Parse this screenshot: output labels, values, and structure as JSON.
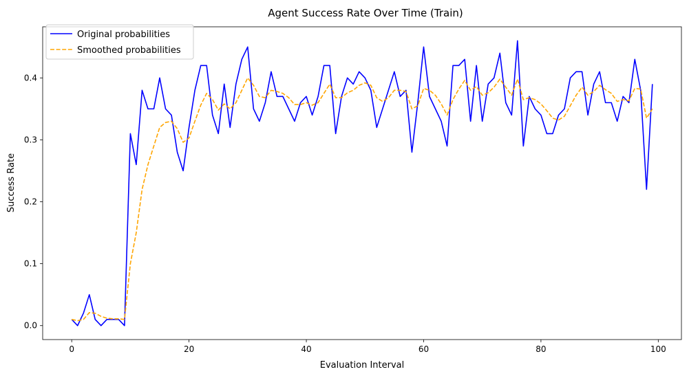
{
  "chart_data": {
    "type": "line",
    "title": "Agent Success Rate Over Time (Train)",
    "xlabel": "Evaluation Interval",
    "ylabel": "Success Rate",
    "xlim": [
      -4.95,
      103.95
    ],
    "ylim": [
      -0.0225,
      0.4825
    ],
    "xticks": [
      0,
      20,
      40,
      60,
      80,
      100
    ],
    "xtick_labels": [
      "0",
      "20",
      "40",
      "60",
      "80",
      "100"
    ],
    "yticks": [
      0.0,
      0.1,
      0.2,
      0.3,
      0.4
    ],
    "ytick_labels": [
      "0.0",
      "0.1",
      "0.2",
      "0.3",
      "0.4"
    ],
    "grid": false,
    "legend_position": "top-left",
    "series": [
      {
        "name": "Original probabilities",
        "color": "#0000ff",
        "style": "solid",
        "x": [
          0,
          1,
          2,
          3,
          4,
          5,
          6,
          7,
          8,
          9,
          10,
          11,
          12,
          13,
          14,
          15,
          16,
          17,
          18,
          19,
          20,
          21,
          22,
          23,
          24,
          25,
          26,
          27,
          28,
          29,
          30,
          31,
          32,
          33,
          34,
          35,
          36,
          37,
          38,
          39,
          40,
          41,
          42,
          43,
          44,
          45,
          46,
          47,
          48,
          49,
          50,
          51,
          52,
          53,
          54,
          55,
          56,
          57,
          58,
          59,
          60,
          61,
          62,
          63,
          64,
          65,
          66,
          67,
          68,
          69,
          70,
          71,
          72,
          73,
          74,
          75,
          76,
          77,
          78,
          79,
          80,
          81,
          82,
          83,
          84,
          85,
          86,
          87,
          88,
          89,
          90,
          91,
          92,
          93,
          94,
          95,
          96,
          97,
          98,
          99
        ],
        "values": [
          0.01,
          0.0,
          0.02,
          0.05,
          0.01,
          0.0,
          0.01,
          0.01,
          0.01,
          0.0,
          0.31,
          0.26,
          0.38,
          0.35,
          0.35,
          0.4,
          0.35,
          0.34,
          0.28,
          0.25,
          0.32,
          0.38,
          0.42,
          0.42,
          0.34,
          0.31,
          0.39,
          0.32,
          0.39,
          0.43,
          0.45,
          0.35,
          0.33,
          0.36,
          0.41,
          0.37,
          0.37,
          0.35,
          0.33,
          0.36,
          0.37,
          0.34,
          0.37,
          0.42,
          0.42,
          0.31,
          0.37,
          0.4,
          0.39,
          0.41,
          0.4,
          0.38,
          0.32,
          0.35,
          0.38,
          0.41,
          0.37,
          0.38,
          0.28,
          0.36,
          0.45,
          0.37,
          0.35,
          0.33,
          0.29,
          0.42,
          0.42,
          0.43,
          0.33,
          0.42,
          0.33,
          0.39,
          0.4,
          0.44,
          0.36,
          0.34,
          0.46,
          0.29,
          0.37,
          0.35,
          0.34,
          0.31,
          0.31,
          0.34,
          0.35,
          0.4,
          0.41,
          0.41,
          0.34,
          0.39,
          0.41,
          0.36,
          0.36,
          0.33,
          0.37,
          0.36,
          0.43,
          0.38,
          0.22,
          0.39
        ]
      },
      {
        "name": "Smoothed probabilities",
        "color": "#ffa500",
        "style": "dashed",
        "x": [
          0,
          1,
          2,
          3,
          4,
          5,
          6,
          7,
          8,
          9,
          10,
          11,
          12,
          13,
          14,
          15,
          16,
          17,
          18,
          19,
          20,
          21,
          22,
          23,
          24,
          25,
          26,
          27,
          28,
          29,
          30,
          31,
          32,
          33,
          34,
          35,
          36,
          37,
          38,
          39,
          40,
          41,
          42,
          43,
          44,
          45,
          46,
          47,
          48,
          49,
          50,
          51,
          52,
          53,
          54,
          55,
          56,
          57,
          58,
          59,
          60,
          61,
          62,
          63,
          64,
          65,
          66,
          67,
          68,
          69,
          70,
          71,
          72,
          73,
          74,
          75,
          76,
          77,
          78,
          79,
          80,
          81,
          82,
          83,
          84,
          85,
          86,
          87,
          88,
          89,
          90,
          91,
          92,
          93,
          94,
          95,
          96,
          97,
          98,
          99
        ],
        "values": [
          0.01,
          0.008,
          0.01,
          0.021,
          0.02,
          0.015,
          0.012,
          0.011,
          0.011,
          0.01,
          0.1,
          0.15,
          0.22,
          0.26,
          0.29,
          0.32,
          0.328,
          0.33,
          0.318,
          0.296,
          0.303,
          0.33,
          0.356,
          0.375,
          0.365,
          0.348,
          0.358,
          0.35,
          0.36,
          0.38,
          0.4,
          0.388,
          0.37,
          0.368,
          0.38,
          0.378,
          0.375,
          0.368,
          0.357,
          0.357,
          0.36,
          0.356,
          0.36,
          0.375,
          0.39,
          0.368,
          0.368,
          0.376,
          0.38,
          0.388,
          0.392,
          0.388,
          0.368,
          0.362,
          0.368,
          0.38,
          0.38,
          0.378,
          0.35,
          0.355,
          0.383,
          0.38,
          0.372,
          0.358,
          0.34,
          0.365,
          0.382,
          0.396,
          0.38,
          0.386,
          0.372,
          0.376,
          0.385,
          0.398,
          0.385,
          0.372,
          0.398,
          0.365,
          0.368,
          0.365,
          0.358,
          0.347,
          0.335,
          0.332,
          0.338,
          0.355,
          0.372,
          0.385,
          0.372,
          0.378,
          0.388,
          0.381,
          0.375,
          0.362,
          0.365,
          0.363,
          0.383,
          0.382,
          0.335,
          0.35
        ]
      }
    ]
  }
}
